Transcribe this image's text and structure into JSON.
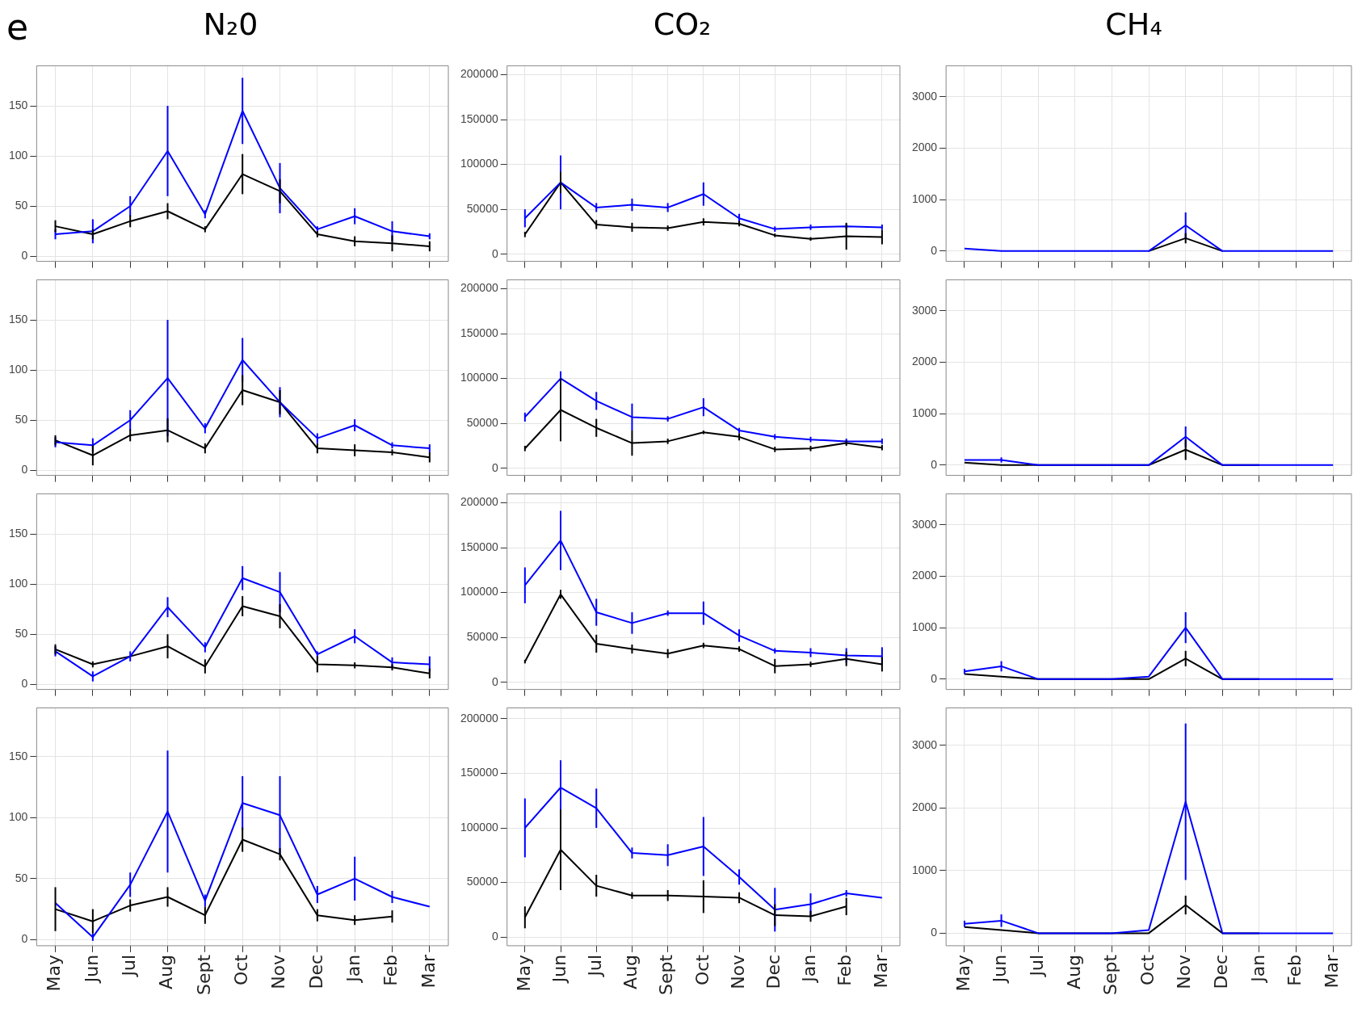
{
  "chart_data": [
    {
      "type": "line",
      "title": "N₂0",
      "annotations": [
        "e"
      ],
      "categories": [
        null,
        null,
        null,
        null,
        null,
        null,
        null,
        null,
        null,
        null,
        null
      ],
      "ylim": [
        -5,
        190
      ],
      "yticks": [
        0,
        50,
        100,
        150
      ],
      "grid": true,
      "tick_labels": "y",
      "marker": "none",
      "series": [
        {
          "color": "#0000ff",
          "values": [
            22,
            25,
            50,
            105,
            42,
            145,
            68,
            27,
            40,
            25,
            20
          ],
          "errors": [
            5,
            12,
            10,
            45,
            4,
            33,
            25,
            3,
            8,
            10,
            3
          ]
        },
        {
          "color": "#000000",
          "values": [
            30,
            22,
            35,
            45,
            27,
            82,
            65,
            22,
            15,
            13,
            10
          ],
          "errors": [
            6,
            5,
            6,
            8,
            3,
            20,
            12,
            3,
            5,
            8,
            5
          ]
        }
      ]
    },
    {
      "type": "line",
      "title": "CO₂",
      "categories": [
        null,
        null,
        null,
        null,
        null,
        null,
        null,
        null,
        null,
        null,
        null
      ],
      "ylim": [
        -8000,
        210000
      ],
      "yticks": [
        0,
        50000,
        100000,
        150000,
        200000
      ],
      "grid": true,
      "tick_labels": "y",
      "marker": "none",
      "series": [
        {
          "color": "#0000ff",
          "values": [
            40000,
            80000,
            52000,
            55000,
            52000,
            67000,
            40000,
            28000,
            30000,
            31000,
            30000
          ],
          "errors": [
            10000,
            30000,
            5000,
            7000,
            5000,
            13000,
            5000,
            3000,
            3000,
            3000,
            3000
          ]
        },
        {
          "color": "#000000",
          "values": [
            22000,
            80000,
            33000,
            30000,
            29000,
            36000,
            34000,
            21000,
            17000,
            20000,
            19000
          ],
          "errors": [
            3000,
            12000,
            5000,
            5000,
            3000,
            4000,
            3000,
            2000,
            2000,
            15000,
            8000
          ]
        }
      ]
    },
    {
      "type": "line",
      "title": "CH₄",
      "categories": [
        null,
        null,
        null,
        null,
        null,
        null,
        null,
        null,
        null,
        null,
        null
      ],
      "ylim": [
        -200,
        3600
      ],
      "yticks": [
        0,
        1000,
        2000,
        3000
      ],
      "grid": true,
      "tick_labels": "y",
      "marker": "none",
      "series": [
        {
          "color": "#0000ff",
          "values": [
            50,
            0,
            0,
            0,
            0,
            0,
            500,
            0,
            0,
            0,
            0
          ],
          "errors": [
            null,
            null,
            null,
            null,
            null,
            null,
            250,
            null,
            null,
            null,
            null
          ]
        },
        {
          "color": "#000000",
          "values": [
            null,
            null,
            null,
            null,
            null,
            0,
            250,
            0,
            null,
            null,
            null
          ],
          "errors": [
            null,
            null,
            null,
            null,
            null,
            null,
            100,
            null,
            null,
            null,
            null
          ]
        }
      ]
    },
    {
      "type": "line",
      "categories": [
        null,
        null,
        null,
        null,
        null,
        null,
        null,
        null,
        null,
        null,
        null
      ],
      "ylim": [
        -5,
        190
      ],
      "yticks": [
        0,
        50,
        100,
        150
      ],
      "grid": true,
      "tick_labels": "y",
      "marker": "none",
      "series": [
        {
          "color": "#0000ff",
          "values": [
            28,
            25,
            50,
            92,
            42,
            110,
            68,
            32,
            45,
            25,
            22
          ],
          "errors": [
            5,
            7,
            10,
            58,
            5,
            22,
            15,
            5,
            6,
            3,
            4
          ]
        },
        {
          "color": "#000000",
          "values": [
            30,
            15,
            35,
            40,
            22,
            80,
            68,
            22,
            20,
            18,
            13
          ],
          "errors": [
            5,
            10,
            6,
            12,
            5,
            15,
            12,
            5,
            6,
            3,
            5
          ]
        }
      ]
    },
    {
      "type": "line",
      "categories": [
        null,
        null,
        null,
        null,
        null,
        null,
        null,
        null,
        null,
        null,
        null
      ],
      "ylim": [
        -8000,
        210000
      ],
      "yticks": [
        0,
        50000,
        100000,
        150000,
        200000
      ],
      "grid": true,
      "tick_labels": "y",
      "marker": "none",
      "series": [
        {
          "color": "#0000ff",
          "values": [
            57000,
            100000,
            75000,
            57000,
            55000,
            68000,
            42000,
            35000,
            32000,
            30000,
            30000
          ],
          "errors": [
            5000,
            8000,
            10000,
            15000,
            3000,
            10000,
            3000,
            3000,
            3000,
            3000,
            3000
          ]
        },
        {
          "color": "#000000",
          "values": [
            22000,
            65000,
            45000,
            28000,
            30000,
            40000,
            35000,
            21000,
            22000,
            28000,
            23000
          ],
          "errors": [
            3000,
            35000,
            10000,
            14000,
            3000,
            2000,
            4000,
            3000,
            3000,
            3000,
            3000
          ]
        }
      ]
    },
    {
      "type": "line",
      "categories": [
        null,
        null,
        null,
        null,
        null,
        null,
        null,
        null,
        null,
        null,
        null
      ],
      "ylim": [
        -200,
        3600
      ],
      "yticks": [
        0,
        1000,
        2000,
        3000
      ],
      "grid": true,
      "tick_labels": "y",
      "marker": "none",
      "series": [
        {
          "color": "#0000ff",
          "values": [
            100,
            100,
            0,
            0,
            0,
            0,
            550,
            0,
            0,
            0,
            0
          ],
          "errors": [
            null,
            50,
            null,
            null,
            null,
            null,
            200,
            null,
            null,
            null,
            null
          ]
        },
        {
          "color": "#000000",
          "values": [
            50,
            0,
            0,
            0,
            0,
            0,
            300,
            0,
            0,
            null,
            null
          ],
          "errors": [
            null,
            null,
            null,
            null,
            null,
            null,
            200,
            null,
            null,
            null,
            null
          ]
        }
      ]
    },
    {
      "type": "line",
      "categories": [
        null,
        null,
        null,
        null,
        null,
        null,
        null,
        null,
        null,
        null,
        null
      ],
      "ylim": [
        -5,
        190
      ],
      "yticks": [
        0,
        50,
        100,
        150
      ],
      "grid": true,
      "tick_labels": "y",
      "marker": "none",
      "series": [
        {
          "color": "#0000ff",
          "values": [
            33,
            8,
            28,
            77,
            37,
            106,
            92,
            30,
            48,
            22,
            20
          ],
          "errors": [
            5,
            5,
            5,
            10,
            5,
            12,
            20,
            3,
            7,
            5,
            8
          ]
        },
        {
          "color": "#000000",
          "values": [
            35,
            20,
            28,
            38,
            18,
            78,
            68,
            20,
            19,
            17,
            11
          ],
          "errors": [
            5,
            3,
            null,
            12,
            7,
            10,
            12,
            8,
            3,
            3,
            5
          ]
        }
      ]
    },
    {
      "type": "line",
      "categories": [
        null,
        null,
        null,
        null,
        null,
        null,
        null,
        null,
        null,
        null,
        null
      ],
      "ylim": [
        -8000,
        210000
      ],
      "yticks": [
        0,
        50000,
        100000,
        150000,
        200000
      ],
      "grid": true,
      "tick_labels": "y",
      "marker": "none",
      "series": [
        {
          "color": "#0000ff",
          "values": [
            108000,
            158000,
            78000,
            66000,
            77000,
            77000,
            52000,
            35000,
            33000,
            30000,
            29000
          ],
          "errors": [
            20000,
            33000,
            15000,
            12000,
            3000,
            13000,
            7000,
            3000,
            5000,
            8000,
            10000
          ]
        },
        {
          "color": "#000000",
          "values": [
            23000,
            98000,
            43000,
            37000,
            32000,
            41000,
            37000,
            18000,
            20000,
            26000,
            20000
          ],
          "errors": [
            2000,
            5000,
            10000,
            5000,
            5000,
            3000,
            3000,
            8000,
            3000,
            8000,
            8000
          ]
        }
      ]
    },
    {
      "type": "line",
      "categories": [
        null,
        null,
        null,
        null,
        null,
        null,
        null,
        null,
        null,
        null,
        null
      ],
      "ylim": [
        -200,
        3600
      ],
      "yticks": [
        0,
        1000,
        2000,
        3000
      ],
      "grid": true,
      "tick_labels": "y",
      "marker": "none",
      "series": [
        {
          "color": "#0000ff",
          "values": [
            150,
            250,
            0,
            0,
            0,
            50,
            1000,
            0,
            0,
            0,
            0
          ],
          "errors": [
            50,
            100,
            null,
            null,
            null,
            null,
            300,
            null,
            null,
            null,
            null
          ]
        },
        {
          "color": "#000000",
          "values": [
            100,
            50,
            0,
            0,
            0,
            0,
            400,
            0,
            0,
            null,
            null
          ],
          "errors": [
            null,
            null,
            null,
            null,
            null,
            null,
            150,
            null,
            null,
            null,
            null
          ]
        }
      ]
    },
    {
      "type": "line",
      "categories": [
        "May",
        "Jun",
        "Jul",
        "Aug",
        "Sept",
        "Oct",
        "Nov",
        "Dec",
        "Jan",
        "Feb",
        "Mar"
      ],
      "ylim": [
        -5,
        190
      ],
      "yticks": [
        0,
        50,
        100,
        150
      ],
      "grid": true,
      "marker": "none",
      "series": [
        {
          "color": "#0000ff",
          "values": [
            30,
            2,
            45,
            105,
            32,
            112,
            102,
            37,
            50,
            35,
            27
          ],
          "errors": [
            null,
            3,
            10,
            50,
            5,
            22,
            32,
            7,
            18,
            5,
            null
          ]
        },
        {
          "color": "#000000",
          "values": [
            25,
            15,
            28,
            35,
            20,
            82,
            70,
            20,
            16,
            19,
            null
          ],
          "errors": [
            18,
            10,
            5,
            8,
            7,
            10,
            5,
            5,
            4,
            5,
            null
          ]
        }
      ]
    },
    {
      "type": "line",
      "categories": [
        "May",
        "Jun",
        "Jul",
        "Aug",
        "Sept",
        "Oct",
        "Nov",
        "Dec",
        "Jan",
        "Feb",
        "Mar"
      ],
      "ylim": [
        -8000,
        210000
      ],
      "yticks": [
        0,
        50000,
        100000,
        150000,
        200000
      ],
      "grid": true,
      "marker": "none",
      "series": [
        {
          "color": "#0000ff",
          "values": [
            100000,
            137000,
            118000,
            77000,
            75000,
            83000,
            55000,
            25000,
            30000,
            40000,
            36000
          ],
          "errors": [
            27000,
            25000,
            18000,
            5000,
            10000,
            27000,
            7000,
            20000,
            10000,
            3000,
            null
          ]
        },
        {
          "color": "#000000",
          "values": [
            18000,
            80000,
            47000,
            38000,
            38000,
            37000,
            36000,
            20000,
            19000,
            28000,
            null
          ],
          "errors": [
            10000,
            37000,
            10000,
            3000,
            5000,
            15000,
            5000,
            10000,
            5000,
            8000,
            null
          ]
        }
      ]
    },
    {
      "type": "line",
      "categories": [
        "May",
        "Jun",
        "Jul",
        "Aug",
        "Sept",
        "Oct",
        "Nov",
        "Dec",
        "Jan",
        "Feb",
        "Mar"
      ],
      "ylim": [
        -200,
        3600
      ],
      "yticks": [
        0,
        1000,
        2000,
        3000
      ],
      "grid": true,
      "marker": "none",
      "series": [
        {
          "color": "#0000ff",
          "values": [
            150,
            200,
            0,
            0,
            0,
            50,
            2100,
            0,
            0,
            0,
            0
          ],
          "errors": [
            50,
            100,
            null,
            null,
            null,
            null,
            1250,
            null,
            null,
            null,
            null
          ]
        },
        {
          "color": "#000000",
          "values": [
            100,
            50,
            0,
            0,
            0,
            0,
            450,
            0,
            0,
            null,
            null
          ],
          "errors": [
            null,
            null,
            null,
            null,
            null,
            null,
            150,
            null,
            null,
            null,
            null
          ]
        }
      ]
    }
  ]
}
